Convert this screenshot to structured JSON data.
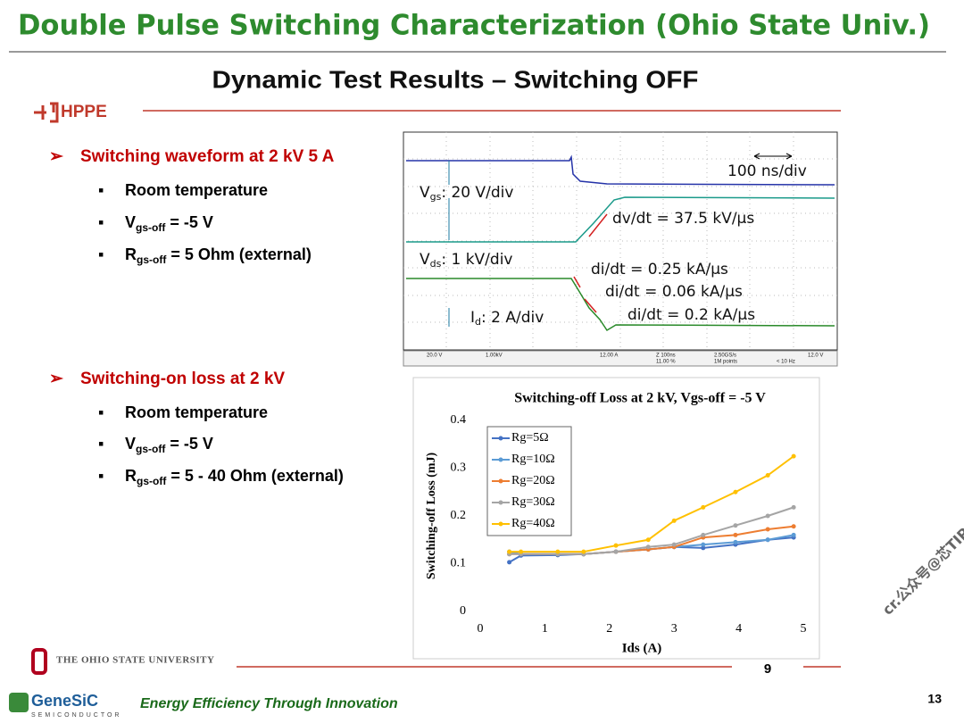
{
  "header": {
    "title": "Double Pulse Switching Characterization (Ohio State Univ.)"
  },
  "slide": {
    "title": "Dynamic Test Results – Switching OFF",
    "logo": "HPPE",
    "sections": [
      {
        "heading": "Switching waveform at 2 kV 5 A",
        "bullets": [
          "Room temperature",
          [
            "V",
            "gs-off",
            " = -5 V"
          ],
          [
            "R",
            "gs-off",
            " = 5 Ohm (external)"
          ]
        ]
      },
      {
        "heading": "Switching-on loss at 2 kV",
        "bullets": [
          "Room temperature",
          [
            "V",
            "gs-off",
            " = -5 V"
          ],
          [
            "R",
            "gs-off",
            " = 5 - 40 Ohm (external)"
          ]
        ]
      }
    ]
  },
  "scope": {
    "labels": [
      [
        "V",
        "gs",
        ": 20 V/div"
      ],
      [
        "V",
        "ds",
        ": 1 kV/div"
      ],
      [
        "I",
        "d",
        ": 2 A/div"
      ]
    ],
    "annotations": [
      "100 ns/div",
      "dv/dt = 37.5 kV/µs",
      "di/dt = 0.25 kA/µs",
      "di/dt = 0.06 kA/µs",
      "di/dt = 0.2 kA/µs"
    ],
    "status": [
      "20.0 V",
      "1.00kV",
      "12.00 A",
      "Z 100ns",
      "11.00 %",
      "2.50GS/s",
      "1M points",
      "12.0 V",
      "< 10 Hz"
    ]
  },
  "chart_data": {
    "type": "line",
    "title": "Switching-off Loss at 2 kV, Vgs-off = -5 V",
    "x_label": "Ids (A)",
    "y_label": "Switching-off Loss (mJ)",
    "x": [
      0.45,
      0.63,
      1.2,
      1.6,
      2.1,
      2.6,
      3.0,
      3.45,
      3.95,
      4.45,
      4.85
    ],
    "series": [
      {
        "name": "Rg=5Ω",
        "color": "#4472c4",
        "values": [
          0.103,
          0.117,
          0.118,
          0.12,
          0.125,
          0.13,
          0.135,
          0.133,
          0.14,
          0.15,
          0.155
        ]
      },
      {
        "name": "Rg=10Ω",
        "color": "#5b9bd5",
        "values": [
          0.125,
          0.12,
          0.12,
          0.12,
          0.125,
          0.13,
          0.135,
          0.14,
          0.145,
          0.15,
          0.16
        ]
      },
      {
        "name": "Rg=20Ω",
        "color": "#ed7d31",
        "values": [
          0.12,
          0.12,
          0.12,
          0.12,
          0.125,
          0.13,
          0.135,
          0.155,
          0.16,
          0.172,
          0.178
        ]
      },
      {
        "name": "Rg=30Ω",
        "color": "#a5a5a5",
        "values": [
          0.12,
          0.12,
          0.12,
          0.12,
          0.125,
          0.135,
          0.14,
          0.16,
          0.18,
          0.2,
          0.218
        ]
      },
      {
        "name": "Rg=40Ω",
        "color": "#ffc000",
        "values": [
          0.125,
          0.125,
          0.125,
          0.125,
          0.138,
          0.15,
          0.19,
          0.218,
          0.25,
          0.285,
          0.325
        ]
      }
    ],
    "xlim": [
      0,
      5
    ],
    "xticks": [
      0,
      1,
      2,
      3,
      4,
      5
    ],
    "ylim": [
      0,
      0.4
    ],
    "yticks": [
      0,
      0.1,
      0.2,
      0.3,
      0.4
    ]
  },
  "footer": {
    "university": "THE OHIO STATE UNIVERSITY",
    "inner_page": "9",
    "watermark": "cr.公众号@芯TIP",
    "brand": "GeneSiC",
    "brand_sub": "SEMICONDUCTOR",
    "tagline": "Energy Efficiency Through Innovation",
    "page": "13"
  }
}
